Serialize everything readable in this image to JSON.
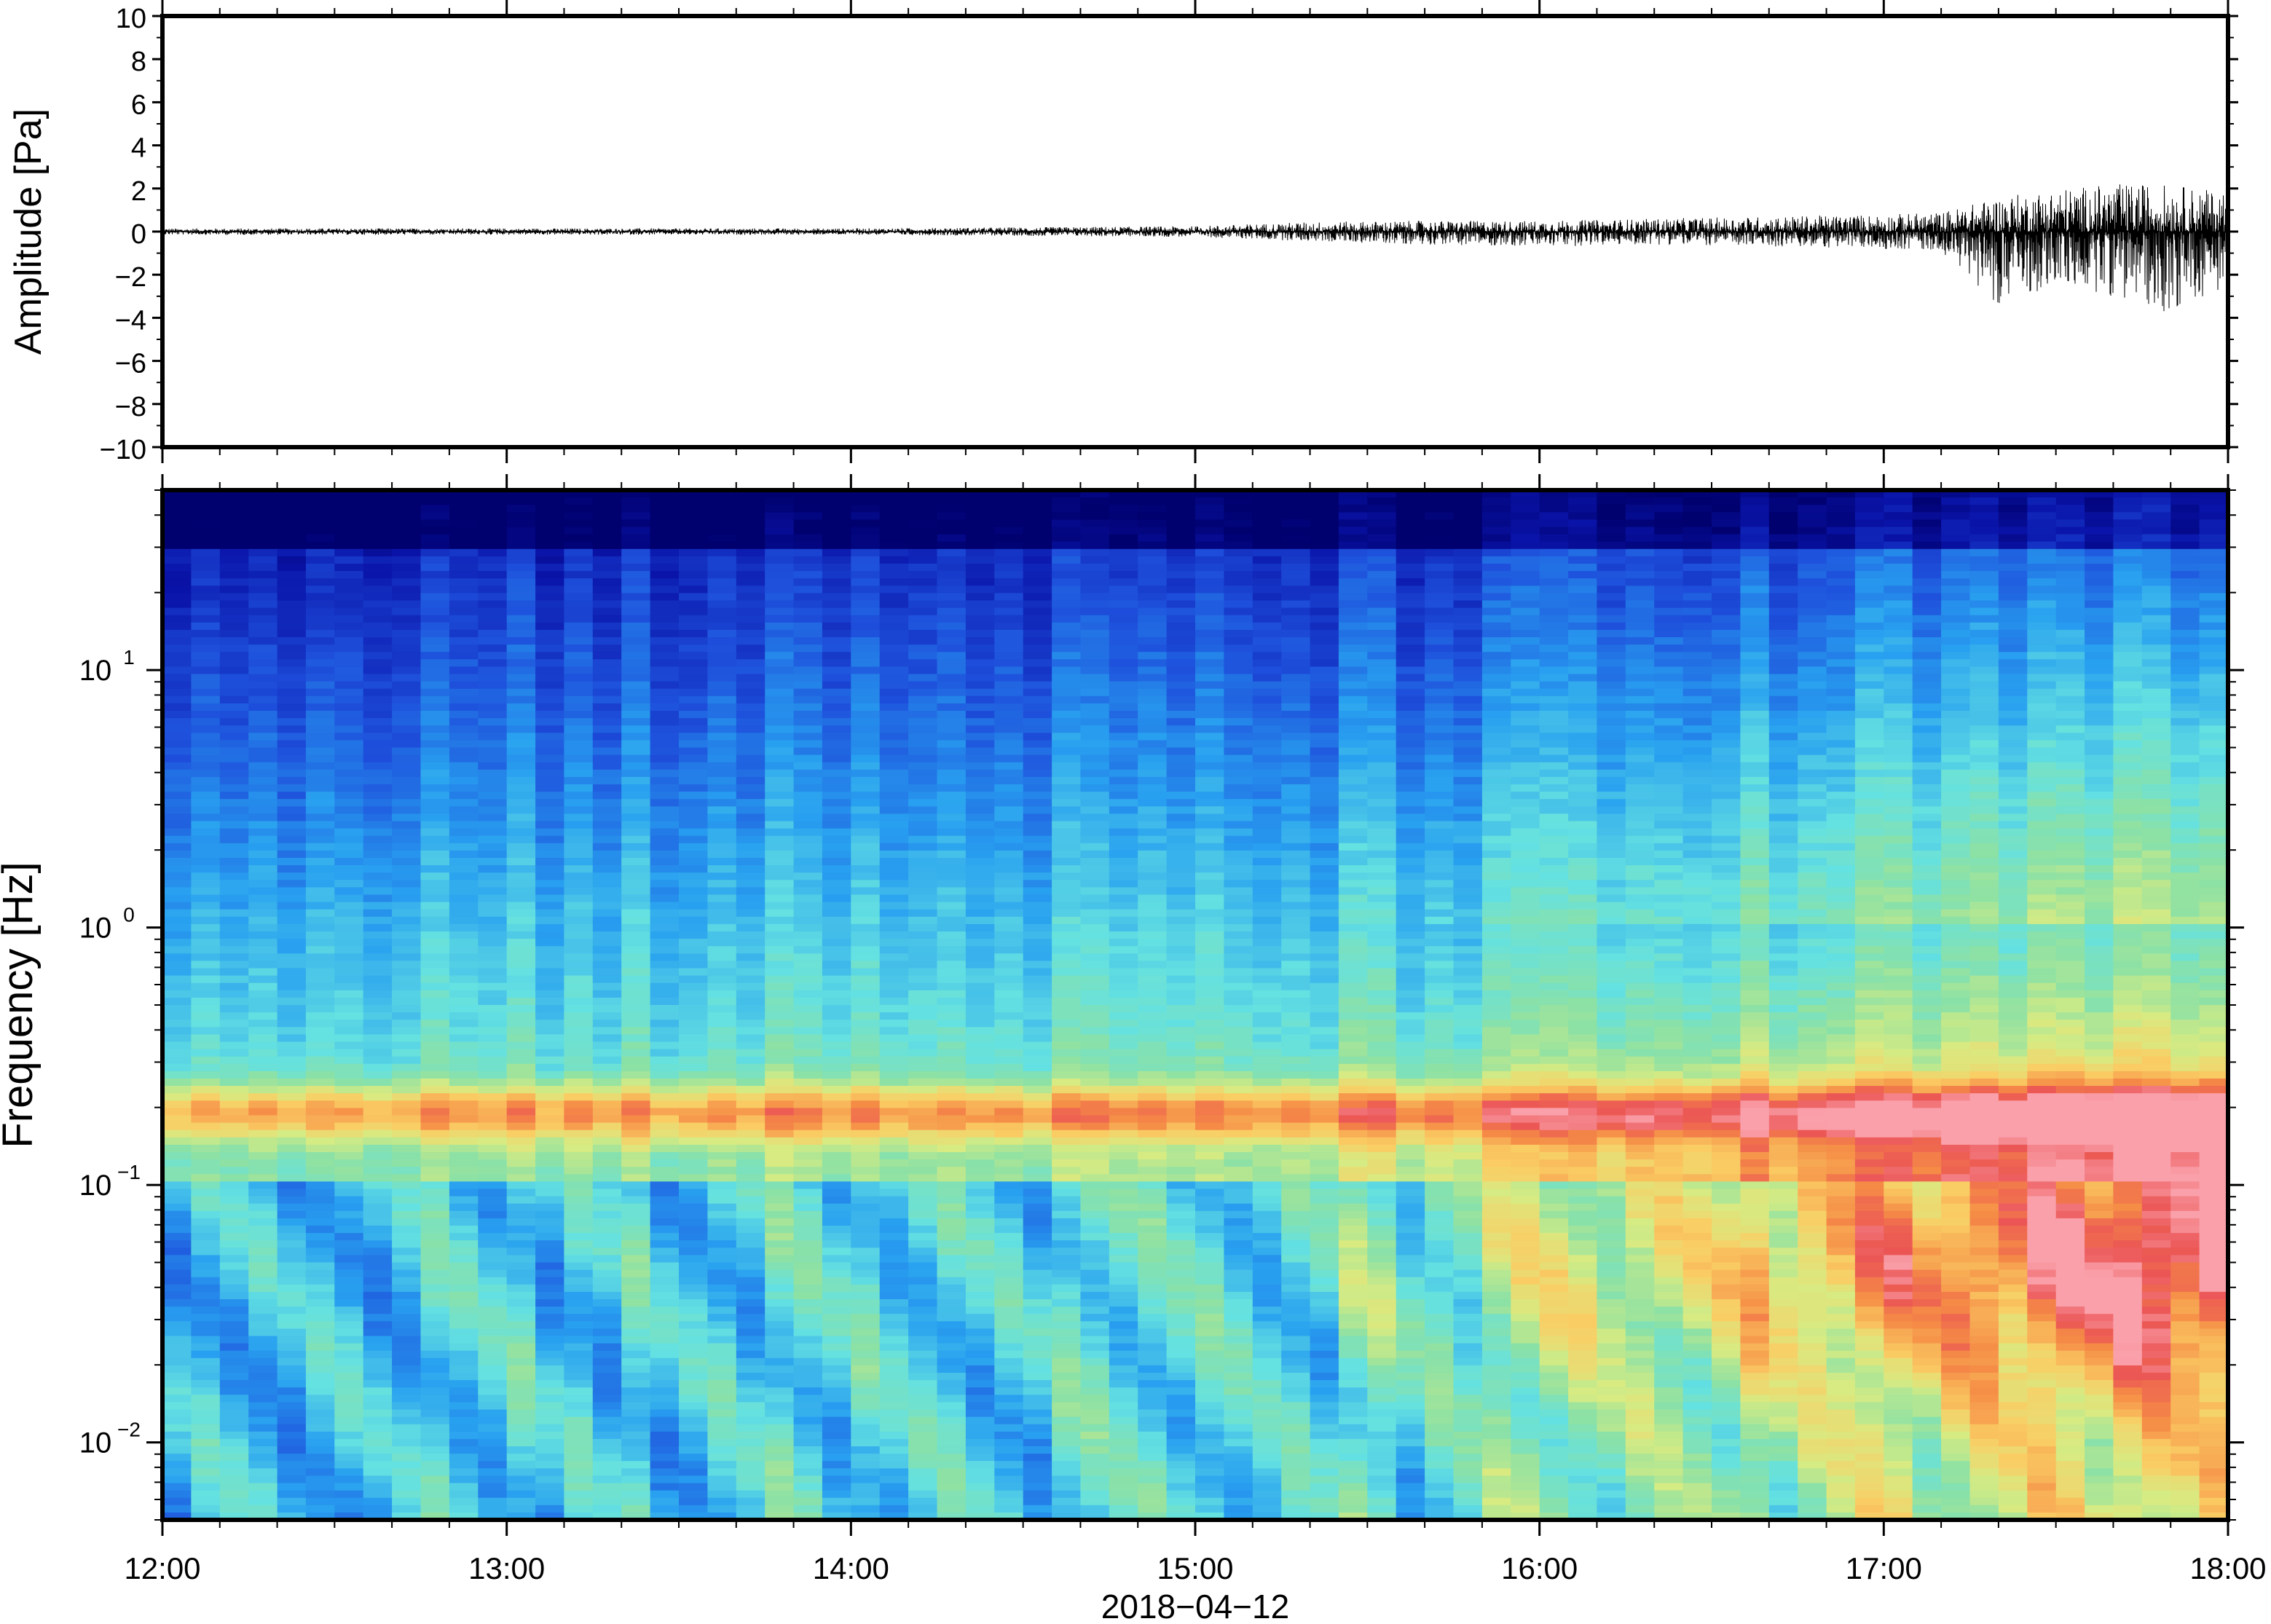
{
  "chart_data": [
    {
      "type": "line",
      "ylabel": "Amplitude [Pa]",
      "ylim": [
        -10,
        10
      ],
      "y_ticks": [
        10,
        8,
        6,
        4,
        2,
        0,
        -2,
        -4,
        -6,
        -8,
        -10
      ],
      "y_tick_labels": [
        "10",
        "8",
        "6",
        "4",
        "2",
        "0",
        "−2",
        "−4",
        "−6",
        "−8",
        "−10"
      ],
      "xlim": [
        "2018-04-12 12:00",
        "2018-04-12 18:00"
      ],
      "series": [
        {
          "x": [
            "12:00",
            "12:30",
            "13:00",
            "13:30",
            "14:00",
            "14:30",
            "15:00",
            "15:20",
            "15:40",
            "16:00",
            "16:20",
            "16:40",
            "17:00",
            "17:10",
            "17:20",
            "17:30",
            "17:40",
            "17:50",
            "18:00"
          ],
          "envelope_max": [
            0.15,
            0.15,
            0.15,
            0.15,
            0.15,
            0.2,
            0.25,
            0.45,
            0.5,
            0.5,
            0.6,
            0.7,
            0.8,
            0.9,
            1.6,
            2.0,
            2.2,
            2.2,
            1.8
          ],
          "envelope_min": [
            -0.15,
            -0.15,
            -0.15,
            -0.15,
            -0.15,
            -0.2,
            -0.25,
            -0.45,
            -0.6,
            -0.7,
            -0.6,
            -0.7,
            -0.8,
            -0.9,
            -3.4,
            -2.5,
            -3.0,
            -3.8,
            -2.5
          ]
        }
      ],
      "color": "#000000"
    },
    {
      "type": "heatmap",
      "ylabel": "Frequency [Hz]",
      "xlabel": "2018−04−12",
      "y_scale": "log",
      "ylim": [
        0.005,
        50
      ],
      "y_ticks": [
        0.01,
        0.1,
        1,
        10
      ],
      "y_tick_labels": [
        {
          "base": "10",
          "exp": "−2"
        },
        {
          "base": "10",
          "exp": "−1"
        },
        {
          "base": "10",
          "exp": "0"
        },
        {
          "base": "10",
          "exp": "1"
        }
      ],
      "x_ticks": [
        "12:00",
        "13:00",
        "14:00",
        "15:00",
        "16:00",
        "17:00",
        "18:00"
      ],
      "colormap": "rainbow (dark blue = low power, red/pink = high power)",
      "description_of_trend": "Microseism band near 0.15–0.3 Hz strongest; broadband energy increases after 15:00 and peaks 17:00–18:00 at 0.03–0.3 Hz"
    }
  ]
}
